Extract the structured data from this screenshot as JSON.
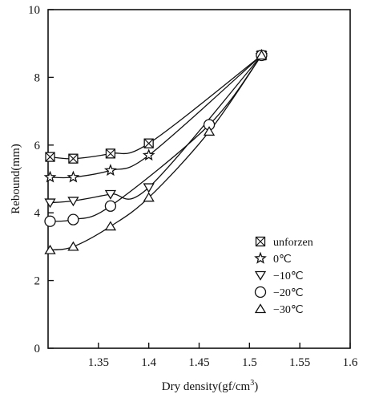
{
  "chart_data": {
    "type": "line",
    "title": "",
    "xlabel": "Dry density(gf/cm",
    "xlabel_sup": "3",
    "xlabel_end": ")",
    "ylabel": "Rebound(mm)",
    "xlim": [
      1.3,
      1.6
    ],
    "ylim": [
      0,
      10
    ],
    "xticks": [
      "1.35",
      "1.4",
      "1.45",
      "1.5",
      "1.55",
      "1.6"
    ],
    "xtick_values": [
      1.35,
      1.4,
      1.45,
      1.5,
      1.55,
      1.6
    ],
    "yticks": [
      "0",
      "2",
      "4",
      "6",
      "8",
      "10"
    ],
    "ytick_values": [
      0,
      2,
      4,
      6,
      8,
      10
    ],
    "grid": false,
    "legend_position": "bottom-right",
    "series": [
      {
        "name": "unforzen",
        "marker": "boxed-x",
        "points": [
          [
            1.302,
            5.65
          ],
          [
            1.325,
            5.6
          ],
          [
            1.362,
            5.75
          ],
          [
            1.4,
            6.05
          ],
          [
            1.512,
            8.65
          ]
        ]
      },
      {
        "name": "0℃",
        "marker": "star",
        "points": [
          [
            1.302,
            5.05
          ],
          [
            1.325,
            5.05
          ],
          [
            1.362,
            5.25
          ],
          [
            1.4,
            5.7
          ],
          [
            1.512,
            8.65
          ]
        ]
      },
      {
        "name": "−10℃",
        "marker": "triangle-down",
        "points": [
          [
            1.302,
            4.3
          ],
          [
            1.325,
            4.35
          ],
          [
            1.362,
            4.55
          ],
          [
            1.4,
            4.75
          ],
          [
            1.512,
            8.65
          ]
        ]
      },
      {
        "name": "−20℃",
        "marker": "circle",
        "points": [
          [
            1.302,
            3.75
          ],
          [
            1.325,
            3.8
          ],
          [
            1.362,
            4.2
          ],
          [
            1.46,
            6.6
          ],
          [
            1.512,
            8.65
          ]
        ]
      },
      {
        "name": "−30℃",
        "marker": "triangle-up",
        "points": [
          [
            1.302,
            2.9
          ],
          [
            1.325,
            3.0
          ],
          [
            1.362,
            3.6
          ],
          [
            1.4,
            4.45
          ],
          [
            1.46,
            6.4
          ],
          [
            1.512,
            8.65
          ]
        ]
      }
    ]
  }
}
